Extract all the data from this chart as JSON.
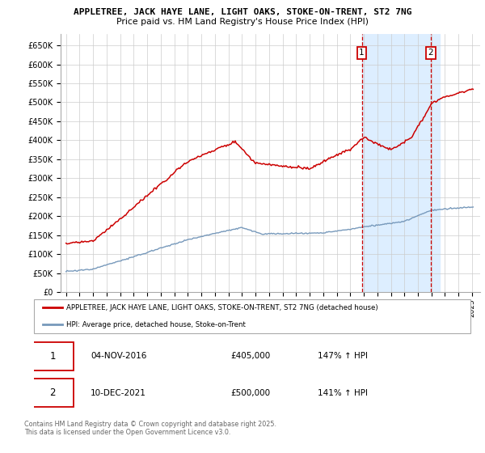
{
  "title1": "APPLETREE, JACK HAYE LANE, LIGHT OAKS, STOKE-ON-TRENT, ST2 7NG",
  "title2": "Price paid vs. HM Land Registry's House Price Index (HPI)",
  "legend_line1": "APPLETREE, JACK HAYE LANE, LIGHT OAKS, STOKE-ON-TRENT, ST2 7NG (detached house)",
  "legend_line2": "HPI: Average price, detached house, Stoke-on-Trent",
  "transaction1_date": "04-NOV-2016",
  "transaction1_price": "£405,000",
  "transaction1_hpi": "147% ↑ HPI",
  "transaction1_year": 2016.85,
  "transaction2_date": "10-DEC-2021",
  "transaction2_price": "£500,000",
  "transaction2_hpi": "141% ↑ HPI",
  "transaction2_year": 2021.94,
  "footer": "Contains HM Land Registry data © Crown copyright and database right 2025.\nThis data is licensed under the Open Government Licence v3.0.",
  "ylim": [
    0,
    680000
  ],
  "yticks": [
    0,
    50000,
    100000,
    150000,
    200000,
    250000,
    300000,
    350000,
    400000,
    450000,
    500000,
    550000,
    600000,
    650000
  ],
  "ytick_labels": [
    "£0",
    "£50K",
    "£100K",
    "£150K",
    "£200K",
    "£250K",
    "£300K",
    "£350K",
    "£400K",
    "£450K",
    "£500K",
    "£550K",
    "£600K",
    "£650K"
  ],
  "red_line_color": "#cc0000",
  "blue_line_color": "#7799bb",
  "highlight_bg_color": "#ddeeff",
  "dashed_line_color": "#cc0000",
  "grid_color": "#cccccc",
  "background_color": "#ffffff"
}
